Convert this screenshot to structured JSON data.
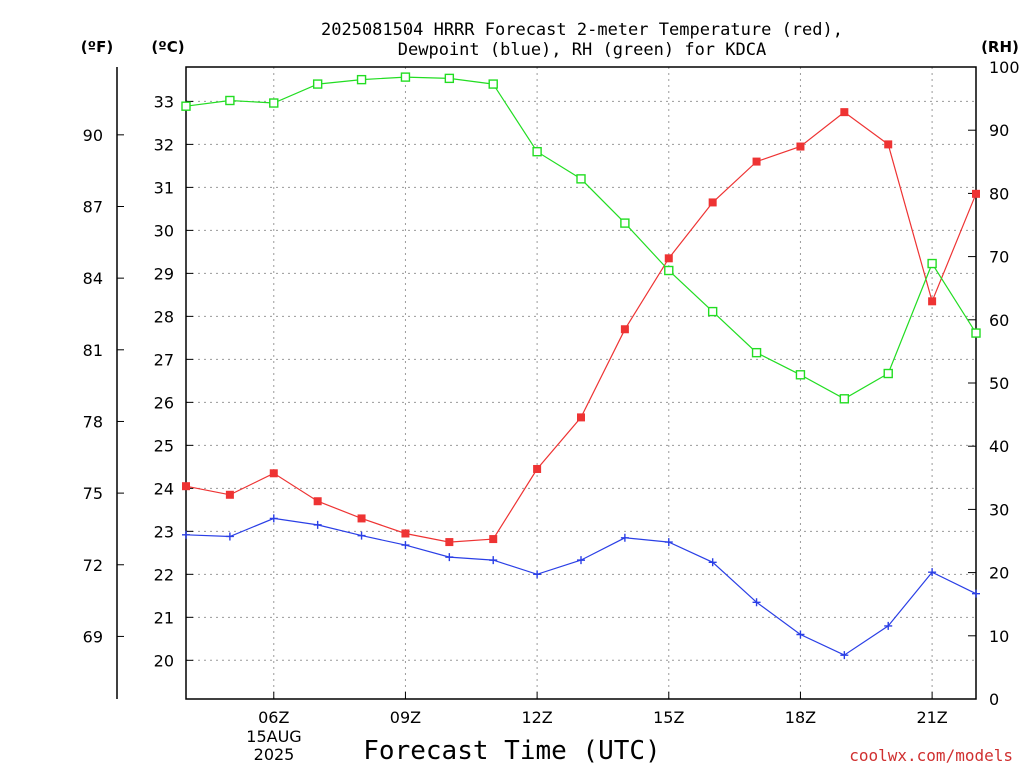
{
  "chart_data": {
    "type": "line",
    "title_line1": "2025081504 HRRR Forecast 2-meter Temperature (red),",
    "title_line2": "Dewpoint (blue), RH (green) for KDCA",
    "xlabel": "Forecast Time (UTC)",
    "y_left_outer_unit": "(ºF)",
    "y_left_inner_unit": "(ºC)",
    "y_right_unit": "(RH)",
    "date_line1": "15AUG",
    "date_line2": "2025",
    "credit": "coolwx.com/models",
    "x_range": [
      4,
      22
    ],
    "c_range": [
      19.1,
      33.8
    ],
    "rh_range": [
      0,
      100
    ],
    "x_ticks": [
      {
        "x": 6,
        "label": "06Z"
      },
      {
        "x": 9,
        "label": "09Z"
      },
      {
        "x": 12,
        "label": "12Z"
      },
      {
        "x": 15,
        "label": "15Z"
      },
      {
        "x": 18,
        "label": "18Z"
      },
      {
        "x": 21,
        "label": "21Z"
      }
    ],
    "c_ticks": [
      20,
      21,
      22,
      23,
      24,
      25,
      26,
      27,
      28,
      29,
      30,
      31,
      32,
      33
    ],
    "f_ticks": [
      69,
      72,
      75,
      78,
      81,
      84,
      87,
      90
    ],
    "rh_ticks": [
      0,
      10,
      20,
      30,
      40,
      50,
      60,
      70,
      80,
      90,
      100
    ],
    "x": [
      4,
      5,
      6,
      7,
      8,
      9,
      10,
      11,
      12,
      13,
      14,
      15,
      16,
      17,
      18,
      19,
      20,
      21,
      22
    ],
    "series": [
      {
        "name": "Temperature",
        "color": "#ee3333",
        "axis": "C",
        "marker": "filled-square",
        "values": [
          24.05,
          23.85,
          24.35,
          23.7,
          23.3,
          22.95,
          22.75,
          22.82,
          24.45,
          25.65,
          27.7,
          29.35,
          30.65,
          31.6,
          31.95,
          32.75,
          32.0,
          28.35,
          30.85
        ]
      },
      {
        "name": "Dewpoint",
        "color": "#2a3fe6",
        "axis": "C",
        "marker": "plus",
        "values": [
          22.92,
          22.88,
          23.3,
          23.15,
          22.9,
          22.68,
          22.4,
          22.33,
          22.0,
          22.33,
          22.85,
          22.75,
          22.28,
          21.35,
          20.6,
          20.12,
          20.8,
          22.05,
          21.55
        ]
      },
      {
        "name": "RH",
        "color": "#22dd22",
        "axis": "RH",
        "marker": "open-square",
        "values": [
          93.8,
          94.7,
          94.3,
          97.3,
          98.0,
          98.4,
          98.2,
          97.3,
          86.6,
          82.3,
          75.3,
          67.8,
          61.3,
          54.8,
          51.3,
          47.5,
          51.5,
          68.9,
          57.9
        ]
      }
    ]
  }
}
